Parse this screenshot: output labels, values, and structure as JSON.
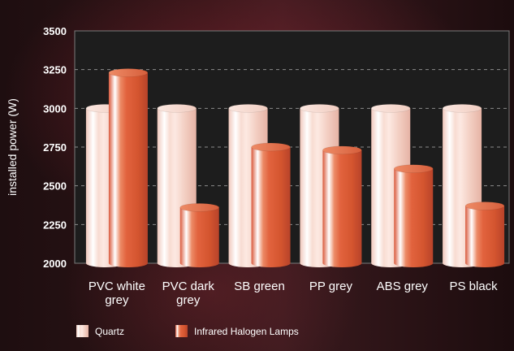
{
  "chart_data": {
    "type": "bar",
    "title": "",
    "xlabel": "",
    "ylabel": "installed power (W)",
    "ylim": [
      2000,
      3500
    ],
    "yticks": [
      2000,
      2250,
      2500,
      2750,
      3000,
      3250,
      3500
    ],
    "grid": true,
    "legend_position": "bottom",
    "categories": [
      [
        "PVC white",
        "grey"
      ],
      [
        "PVC dark",
        "grey"
      ],
      [
        "SB green"
      ],
      [
        "PP grey"
      ],
      [
        "ABS grey"
      ],
      [
        "PS black"
      ]
    ],
    "series": [
      {
        "name": "Quartz",
        "values": [
          3000,
          3000,
          3000,
          3000,
          3000,
          3000
        ],
        "color": "#f6d9cf"
      },
      {
        "name": "Infrared Halogen Lamps",
        "values": [
          3230,
          2360,
          2750,
          2730,
          2610,
          2370
        ],
        "color": "#e0643c"
      }
    ]
  }
}
